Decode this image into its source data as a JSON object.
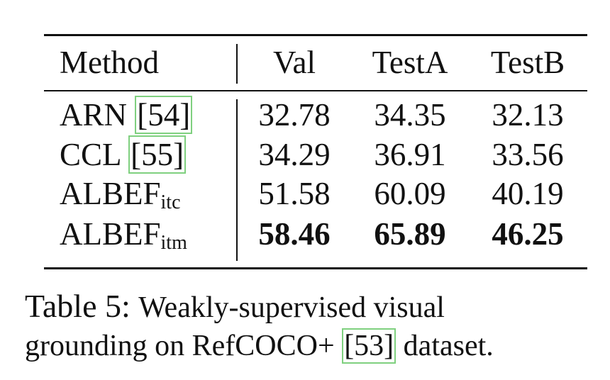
{
  "table": {
    "header": [
      "Method",
      "Val",
      "TestA",
      "TestB"
    ],
    "rows": [
      {
        "method": "ARN",
        "cite": "[54]",
        "values": [
          32.78,
          34.35,
          32.13
        ]
      },
      {
        "method": "CCL",
        "cite": "[55]",
        "values": [
          34.29,
          36.91,
          33.56
        ]
      },
      {
        "method": "ALBEF",
        "sub": "itc",
        "values": [
          51.58,
          60.09,
          40.19
        ]
      },
      {
        "method": "ALBEF",
        "sub": "itm",
        "values": [
          58.46,
          65.89,
          46.25
        ],
        "bold": true
      }
    ]
  },
  "caption": {
    "label": "Table 5:",
    "text_line1": "Weakly-supervised visual",
    "text_line2": "grounding on RefCOCO+",
    "cite": "[53]",
    "text_after": "dataset."
  }
}
